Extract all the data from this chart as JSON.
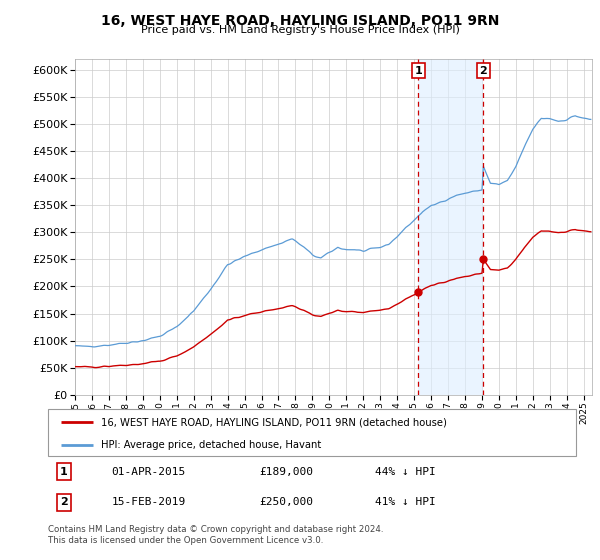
{
  "title": "16, WEST HAYE ROAD, HAYLING ISLAND, PO11 9RN",
  "subtitle": "Price paid vs. HM Land Registry's House Price Index (HPI)",
  "ylim": [
    0,
    620000
  ],
  "ytick_values": [
    0,
    50000,
    100000,
    150000,
    200000,
    250000,
    300000,
    350000,
    400000,
    450000,
    500000,
    550000,
    600000
  ],
  "hpi_color": "#5b9bd5",
  "hpi_fill_color": "#ddeeff",
  "price_color": "#cc0000",
  "vline_color": "#cc0000",
  "shade_color": "#ddeeff",
  "sale1_date": "01-APR-2015",
  "sale1_price": 189000,
  "sale1_label": "1",
  "sale1_pct": "44% ↓ HPI",
  "sale1_year": 2015.25,
  "sale2_date": "15-FEB-2019",
  "sale2_price": 250000,
  "sale2_label": "2",
  "sale2_pct": "41% ↓ HPI",
  "sale2_year": 2019.083,
  "legend_house": "16, WEST HAYE ROAD, HAYLING ISLAND, PO11 9RN (detached house)",
  "legend_hpi": "HPI: Average price, detached house, Havant",
  "footer": "Contains HM Land Registry data © Crown copyright and database right 2024.\nThis data is licensed under the Open Government Licence v3.0.",
  "background_color": "#ffffff",
  "plot_bg_color": "#ffffff",
  "grid_color": "#cccccc",
  "xlim_start": 1995,
  "xlim_end": 2025.5
}
